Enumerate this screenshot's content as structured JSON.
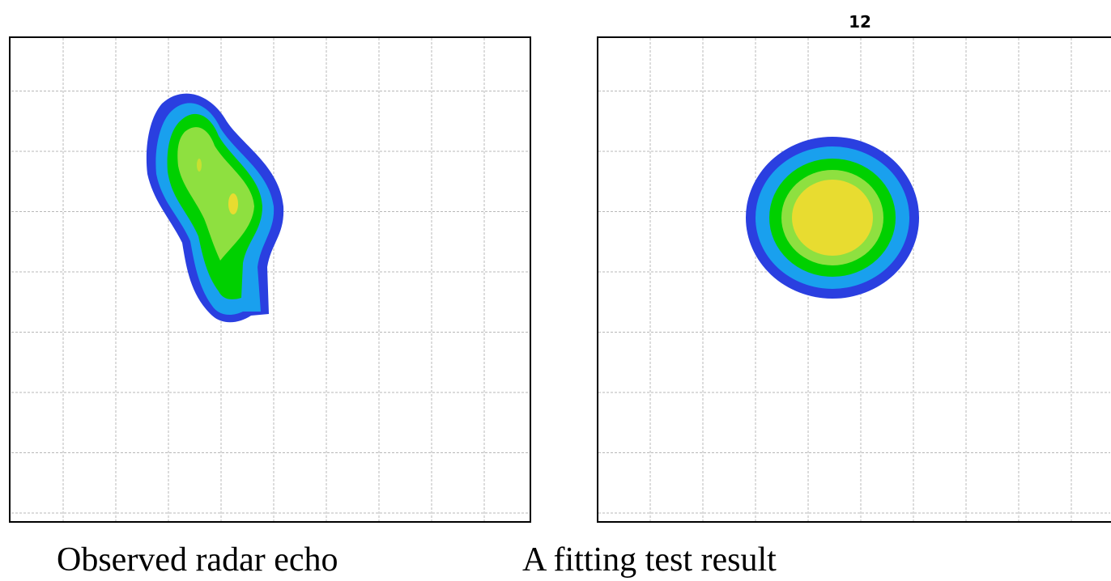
{
  "panels": [
    {
      "caption": "Observed radar echo"
    },
    {
      "title": "12",
      "caption": "A fitting test result"
    }
  ]
}
